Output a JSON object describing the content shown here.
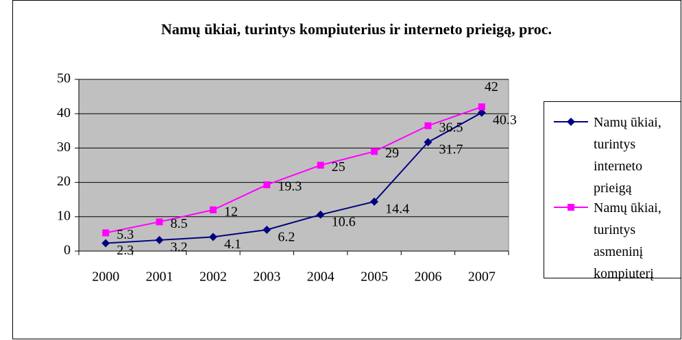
{
  "chart_data": {
    "type": "line",
    "title": "Namų ūkiai, turintys kompiuterius ir interneto prieigą, proc.",
    "categories": [
      "2000",
      "2001",
      "2002",
      "2003",
      "2004",
      "2005",
      "2006",
      "2007"
    ],
    "series": [
      {
        "name": "Namų ūkiai, turintys interneto prieigą",
        "color": "#000080",
        "marker": "diamond",
        "values": [
          2.3,
          3.2,
          4.1,
          6.2,
          10.6,
          14.4,
          31.7,
          40.3
        ]
      },
      {
        "name": "Namų ūkiai, turintys asmeninį kompiuterį",
        "color": "#ff00ff",
        "marker": "square",
        "values": [
          5.3,
          8.5,
          12,
          19.3,
          25,
          29,
          36.5,
          42
        ]
      }
    ],
    "ylim": [
      0,
      50
    ],
    "yticks": [
      0,
      10,
      20,
      30,
      40,
      50
    ],
    "grid": true,
    "legend": "right"
  }
}
